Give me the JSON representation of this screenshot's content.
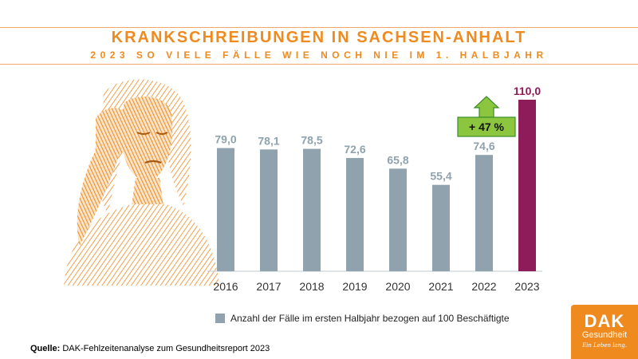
{
  "header": {
    "title": "KRANKSCHREIBUNGEN IN SACHSEN-ANHALT",
    "subtitle": "2023 SO VIELE FÄLLE WIE NOCH NIE IM 1. HALBJAHR"
  },
  "colors": {
    "accent": "#ef8a1f",
    "bar": "#8fa2ad",
    "highlight_bar": "#8e1c5a",
    "callout": "#3a8d2a",
    "arrow": "#8cc63f"
  },
  "chart_data": {
    "type": "bar",
    "categories": [
      "2016",
      "2017",
      "2018",
      "2019",
      "2020",
      "2021",
      "2022",
      "2023"
    ],
    "values": [
      79.0,
      78.1,
      78.5,
      72.6,
      65.8,
      55.4,
      74.6,
      110.0
    ],
    "value_labels": [
      "79,0",
      "78,1",
      "78,5",
      "72,6",
      "65,8",
      "55,4",
      "74,6",
      "110,0"
    ],
    "highlight_index": 7,
    "ylim": [
      0,
      110
    ],
    "legend": "Anzahl der Fälle im ersten Halbjahr bezogen auf 100 Beschäftigte",
    "annotation": {
      "text": "+ 47 %",
      "category": "2022"
    }
  },
  "footer": {
    "source_label": "Quelle:",
    "source_text": "DAK-Fehlzeitenanalyse zum Gesundheitsreport 2023"
  },
  "logo": {
    "brand": "DAK",
    "sub": "Gesundheit",
    "claim": "Ein Leben lang."
  },
  "icons": {
    "portrait": "headache-woman-illustration",
    "arrow": "up-arrow-icon"
  }
}
